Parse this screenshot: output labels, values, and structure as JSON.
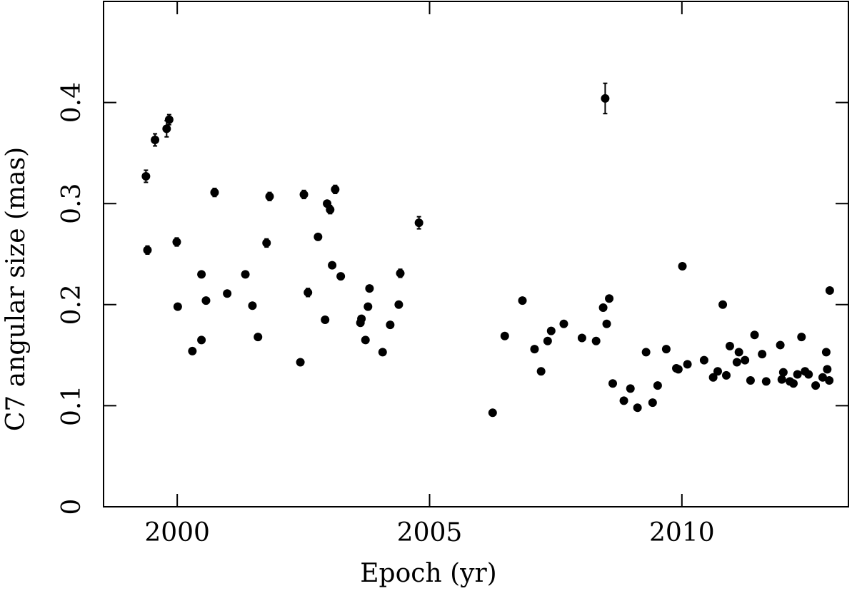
{
  "chart_data": {
    "type": "scatter",
    "xlabel": "Epoch (yr)",
    "ylabel": "C7 angular size (mas)",
    "color": "#000000",
    "xlim": [
      1998.54,
      2013.3
    ],
    "xticks": [
      2000,
      2005,
      2010
    ],
    "ylim": [
      0,
      0.5
    ],
    "yticks": [
      0,
      0.1,
      0.2,
      0.3,
      0.4
    ],
    "x": [
      1999.38,
      1999.41,
      1999.56,
      1999.79,
      1999.84,
      1999.99,
      2000.01,
      2000.3,
      2000.48,
      2000.48,
      2000.57,
      2000.74,
      2000.99,
      2001.35,
      2001.49,
      2001.6,
      2001.77,
      2001.83,
      2002.44,
      2002.51,
      2002.59,
      2002.79,
      2002.93,
      2002.97,
      2003.03,
      2003.07,
      2003.13,
      2003.24,
      2003.63,
      2003.65,
      2003.73,
      2003.78,
      2003.81,
      2004.07,
      2004.22,
      2004.39,
      2004.42,
      2004.79,
      2006.25,
      2006.49,
      2006.84,
      2007.08,
      2007.21,
      2007.34,
      2007.41,
      2007.66,
      2008.02,
      2008.3,
      2008.44,
      2008.48,
      2008.51,
      2008.56,
      2008.63,
      2008.85,
      2008.98,
      2009.12,
      2009.29,
      2009.42,
      2009.52,
      2009.69,
      2009.89,
      2009.93,
      2010.01,
      2010.11,
      2010.44,
      2010.62,
      2010.71,
      2010.81,
      2010.88,
      2010.95,
      2011.09,
      2011.13,
      2011.25,
      2011.36,
      2011.44,
      2011.59,
      2011.67,
      2011.95,
      2011.98,
      2012.01,
      2012.14,
      2012.21,
      2012.29,
      2012.37,
      2012.44,
      2012.51,
      2012.65,
      2012.79,
      2012.86,
      2012.88,
      2012.92,
      2012.93
    ],
    "y": [
      0.327,
      0.254,
      0.363,
      0.374,
      0.383,
      0.262,
      0.198,
      0.154,
      0.165,
      0.23,
      0.204,
      0.311,
      0.211,
      0.23,
      0.199,
      0.168,
      0.261,
      0.307,
      0.143,
      0.309,
      0.212,
      0.267,
      0.185,
      0.3,
      0.294,
      0.239,
      0.314,
      0.228,
      0.182,
      0.186,
      0.165,
      0.198,
      0.216,
      0.153,
      0.18,
      0.2,
      0.231,
      0.281,
      0.093,
      0.169,
      0.204,
      0.156,
      0.134,
      0.164,
      0.174,
      0.181,
      0.167,
      0.164,
      0.197,
      0.404,
      0.181,
      0.206,
      0.122,
      0.105,
      0.117,
      0.098,
      0.153,
      0.103,
      0.12,
      0.156,
      0.137,
      0.136,
      0.238,
      0.141,
      0.145,
      0.128,
      0.134,
      0.2,
      0.13,
      0.159,
      0.143,
      0.153,
      0.145,
      0.125,
      0.17,
      0.151,
      0.124,
      0.16,
      0.126,
      0.133,
      0.124,
      0.122,
      0.131,
      0.168,
      0.134,
      0.131,
      0.12,
      0.128,
      0.153,
      0.136,
      0.125,
      0.214
    ],
    "errors": [
      0.006,
      0.004,
      0.006,
      0.008,
      0.005,
      0.004,
      null,
      null,
      null,
      null,
      null,
      0.004,
      null,
      null,
      null,
      null,
      0.004,
      0.004,
      null,
      0.004,
      0.004,
      null,
      null,
      0.003,
      0.004,
      null,
      0.004,
      null,
      null,
      null,
      null,
      null,
      null,
      null,
      null,
      null,
      0.004,
      0.006,
      null,
      null,
      null,
      null,
      null,
      null,
      null,
      null,
      null,
      null,
      null,
      0.015,
      null,
      null,
      null,
      null,
      null,
      null,
      null,
      null,
      null,
      null,
      null,
      null,
      null,
      null,
      null,
      null,
      null,
      null,
      null,
      null,
      null,
      null,
      null,
      null,
      null,
      null,
      null,
      null,
      null,
      null,
      null,
      null,
      null,
      null,
      null,
      null,
      null,
      null,
      null,
      null,
      null,
      null
    ]
  }
}
